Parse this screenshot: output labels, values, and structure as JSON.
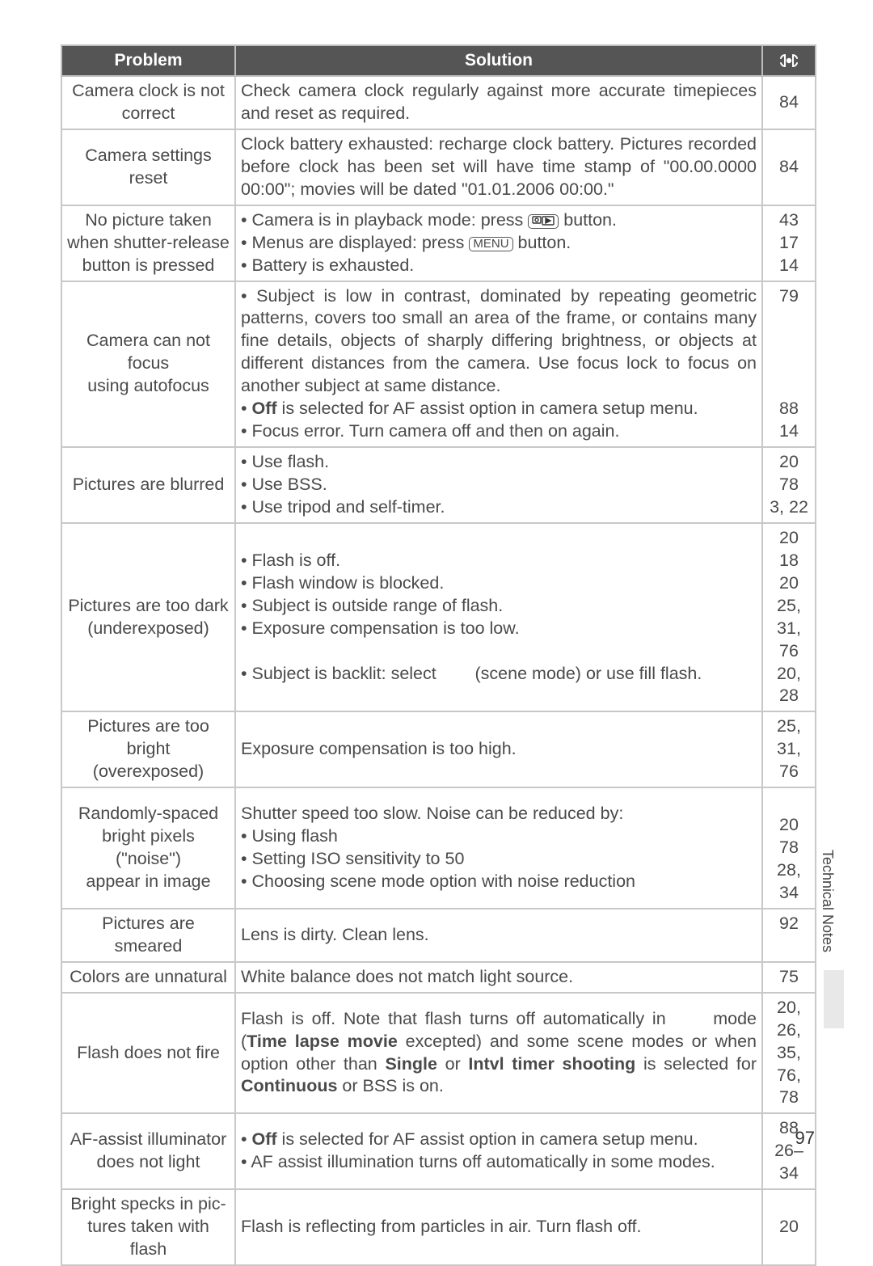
{
  "side_tab_label": "Technical Notes",
  "page_number": "97",
  "headers": {
    "problem": "Problem",
    "solution": "Solution"
  },
  "menu_btn_label": "MENU",
  "colors": {
    "header_bg": "#555555",
    "header_fg": "#ffffff",
    "border": "#c8c8c8",
    "text": "#4a4a4a"
  },
  "rows": [
    {
      "problem": "Camera clock is not correct",
      "solution_html": "Check camera clock regularly against more accurate time­pieces and reset as required.",
      "pages": "84",
      "page_valign": "middle"
    },
    {
      "problem": "Camera settings reset",
      "solution_html": "Clock battery exhausted: recharge clock battery. Pictures recorded before clock has been set will have time stamp of \"00.00.0000 00:00\"; movies will be dated \"01.01.2006 00:00.\"",
      "pages": "84",
      "page_valign": "middle"
    },
    {
      "problem": "No picture taken\nwhen shutter-release\nbutton is pressed",
      "solution_html": "• Camera is in playback mode: press {{PLAYBACK_BTN}} button.<br>• Menus are displayed: press {{MENU_BTN}} button.<br>• Battery is exhausted.",
      "pages": "43\n17\n14"
    },
    {
      "problem": "Camera can not focus\nusing autofocus",
      "solution_html": "• Subject is low in contrast, dominated by repeating geomet­ric patterns, covers too small an area of the frame, or con­tains many fine details, objects of sharply differing bright­ness, or objects at different distances from the camera. Use focus lock to focus on another subject at same distance.<br>• <b>Off</b> is selected for AF assist option in camera setup menu.<br>• Focus error. Turn camera off and then on again.",
      "pages": "79\n\n\n\n\n88\n14"
    },
    {
      "problem": "Pictures are blurred",
      "solution_html": "• Use flash.<br>• Use BSS.<br>• Use tripod and self-timer.",
      "pages": "20\n78\n3, 22"
    },
    {
      "problem": "Pictures are too dark\n(underexposed)",
      "solution_html": "• Flash is off.<br>• Flash window is blocked.<br>• Subject is outside range of flash.<br>• Exposure compensation is too low.<br><br>• Subject is backlit: select &nbsp;&nbsp;&nbsp;&nbsp;&nbsp;&nbsp; (scene mode) or use fill flash.",
      "pages": "20\n18\n20\n25, 31,\n76\n20, 28"
    },
    {
      "problem": "Pictures are too bright\n(overexposed)",
      "solution_html": "Exposure compensation is too high.",
      "pages": "25, 31,\n76"
    },
    {
      "problem": "Randomly-spaced\nbright pixels (\"noise\")\nappear in image",
      "solution_html": "Shutter speed too slow. Noise can be reduced by:<br>• Using flash<br>• Setting ISO sensitivity to 50<br>• Choosing scene mode option with noise reduction",
      "pages": "\n20\n78\n28, 34"
    },
    {
      "problem": "Pictures are smeared",
      "solution_html": "Lens is dirty. Clean lens.",
      "pages": "92"
    },
    {
      "problem": "Colors are unnatural",
      "solution_html": "White balance does not match light source.",
      "pages": "75"
    },
    {
      "problem": "Flash does not fire",
      "solution_html": "Flash is off. Note that flash turns off automatically in &nbsp;&nbsp;&nbsp;&nbsp; mode (<b>Time lapse movie</b> excepted) and some scene modes or when option other than <b>Single</b> or <b>Intvl timer shooting</b> is selected for <b>Continuous</b> or BSS is on.",
      "pages": "20, 26,\n35, 76,\n78",
      "page_valign": "middle"
    },
    {
      "problem": "AF-assist illuminator\ndoes not light",
      "solution_html": "• <b>Off</b> is selected for AF assist option in camera setup menu.<br>• AF assist illumination turns off automatically in some modes.",
      "pages": "88\n26–34"
    },
    {
      "problem": "Bright specks in pic­tures taken with flash",
      "solution_html": "Flash is reflecting from particles in air. Turn flash off.",
      "pages": "20",
      "page_valign": "middle"
    }
  ]
}
